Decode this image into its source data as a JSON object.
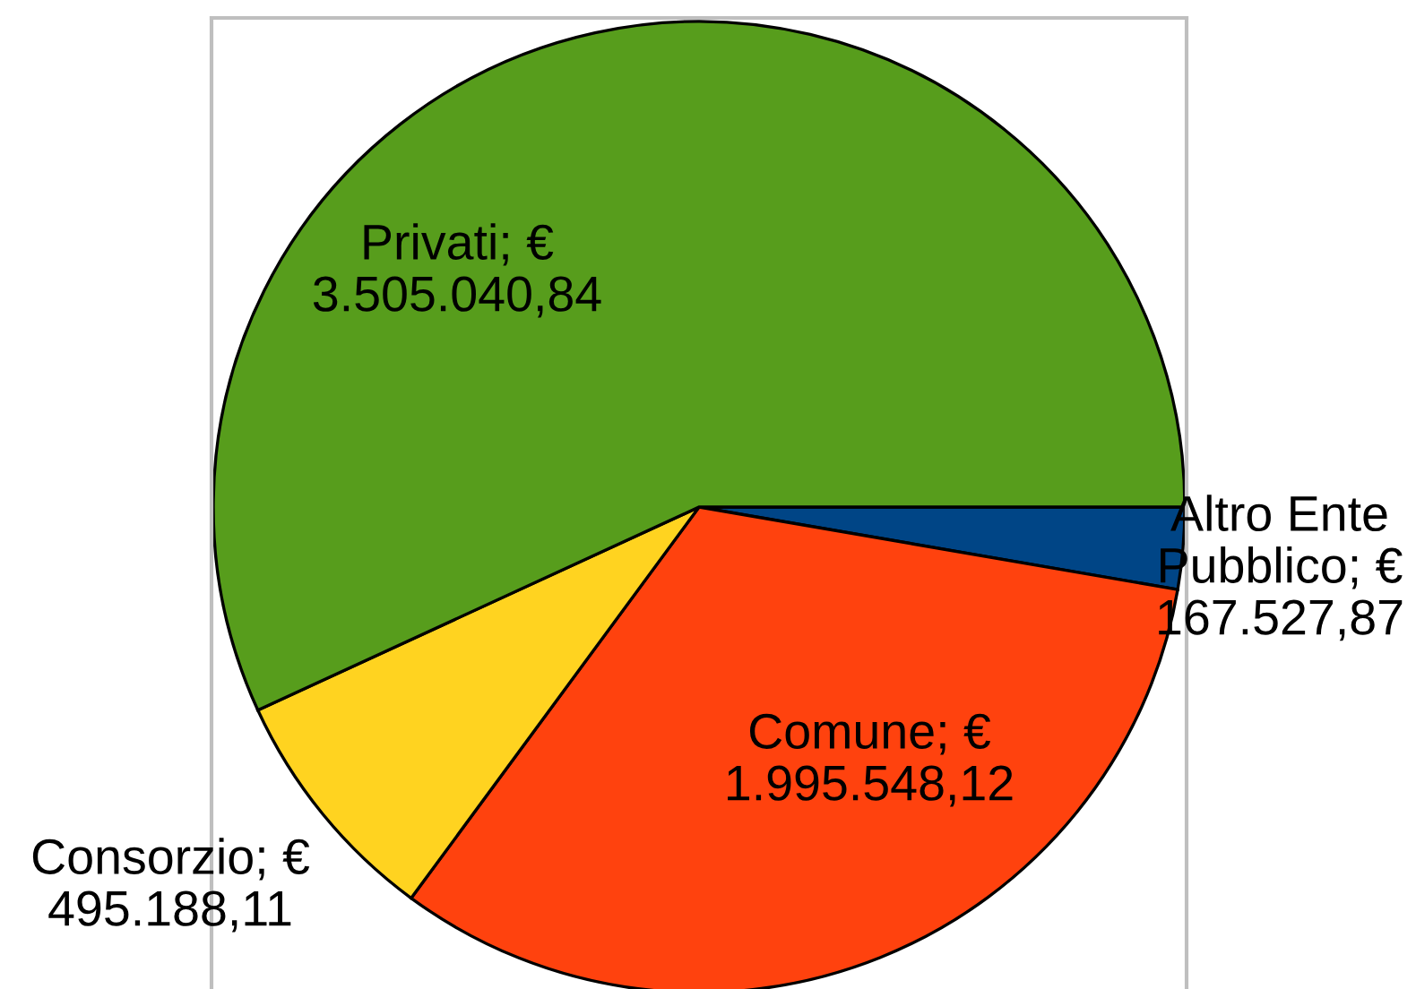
{
  "chart_data": {
    "type": "pie",
    "categories": [
      "Altro Ente Pubblico",
      "Comune",
      "Consorzio",
      "Privati"
    ],
    "values": [
      167527.87,
      1995548.12,
      495188.11,
      3505040.84
    ],
    "colors": [
      "#004586",
      "#ff420e",
      "#ffd320",
      "#579d1c"
    ],
    "value_labels": [
      "€ 167.527,87",
      "€ 1.995.548,12",
      "€ 495.188,11",
      "€ 3.505.040,84"
    ]
  }
}
